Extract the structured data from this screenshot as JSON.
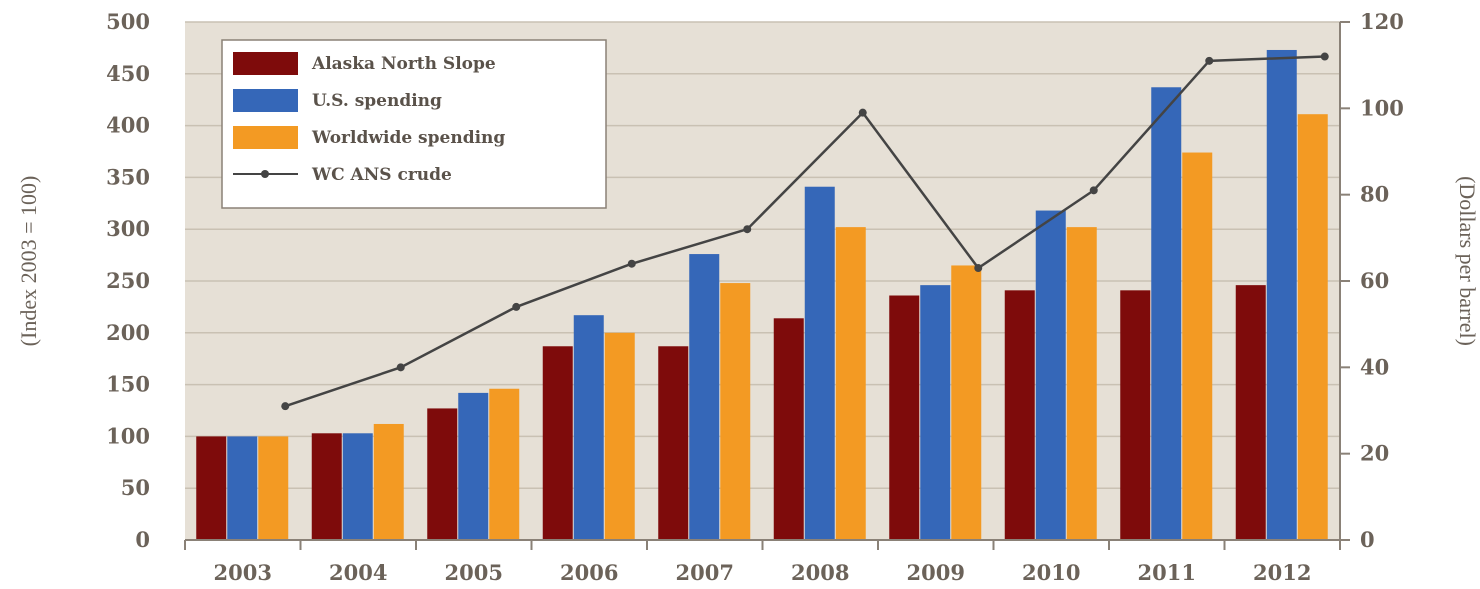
{
  "chart_data": {
    "type": "bar",
    "categories": [
      "2003",
      "2004",
      "2005",
      "2006",
      "2007",
      "2008",
      "2009",
      "2010",
      "2011",
      "2012"
    ],
    "series": [
      {
        "name": "Alaska North Slope",
        "values": [
          100,
          103,
          127,
          187,
          187,
          214,
          236,
          241,
          241,
          246
        ]
      },
      {
        "name": "U.S. spending",
        "values": [
          100,
          103,
          142,
          217,
          276,
          341,
          246,
          318,
          437,
          473
        ]
      },
      {
        "name": "Worldwide spending",
        "values": [
          100,
          112,
          146,
          200,
          248,
          302,
          265,
          302,
          374,
          411
        ]
      }
    ],
    "line_series": {
      "name": "WC ANS crude",
      "axis": "right",
      "values": [
        31,
        40,
        54,
        64,
        72,
        99,
        63,
        81,
        111,
        112
      ]
    },
    "ylabel": "(Index 2003 = 100)",
    "y2label": "(Dollars per barrel)",
    "ylim": [
      0,
      500
    ],
    "y2lim": [
      0,
      120
    ],
    "yticks": [
      "0",
      "50",
      "100",
      "150",
      "200",
      "250",
      "300",
      "350",
      "400",
      "450",
      "500"
    ],
    "y2ticks": [
      "0",
      "20",
      "40",
      "60",
      "80",
      "100",
      "120"
    ],
    "grid": true,
    "legend_position": "top-left",
    "colors": {
      "Alaska North Slope": "#7e0b0b",
      "U.S. spending": "#3567b8",
      "Worldwide spending": "#f39a23",
      "WC ANS crude": "#444444",
      "plot_background": "#e6e0d6",
      "gridline": "#c9c1b3"
    }
  }
}
